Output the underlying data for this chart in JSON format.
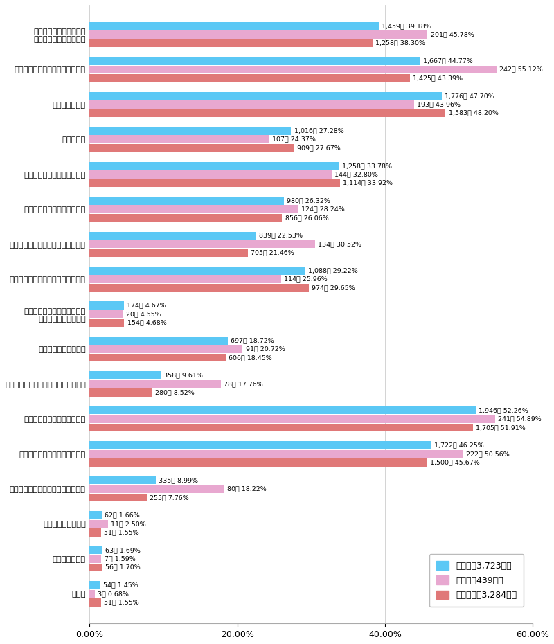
{
  "categories": [
    "既存の商品やサービスの\n量産・提供体制を整える",
    "新しい商品やサービスを投入する",
    "人員を増強する",
    "賃上げする",
    "従業員への教育機会を増やす",
    "設備を新設・増強・拡張する",
    "デジタル化へ投賃する（増額する）",
    "協力業者（パートナー）を拡充する",
    "協力業者（パートナー）への\n支払い単価を増額する",
    "新しい事業に参入する",
    "Ｍ＆Ａ（企業買収）や事業買収をする",
    "新規販売先の開拓に注力する",
    "既存販売先への拡販に注力する",
    "海外への販売を増やす（開始する）",
    "経営陣を入れ替える",
    "資本を注入する",
    "その他"
  ],
  "all_values": [
    39.18,
    44.77,
    47.7,
    27.28,
    33.78,
    26.32,
    22.53,
    29.22,
    4.67,
    18.72,
    9.61,
    52.26,
    46.25,
    8.99,
    1.66,
    1.69,
    1.45
  ],
  "large_values": [
    45.78,
    55.12,
    43.96,
    24.37,
    32.8,
    28.24,
    30.52,
    25.96,
    4.55,
    20.72,
    17.76,
    54.89,
    50.56,
    18.22,
    2.5,
    1.59,
    0.68
  ],
  "sme_values": [
    38.3,
    43.39,
    48.2,
    27.67,
    33.92,
    26.06,
    21.46,
    29.65,
    4.68,
    18.45,
    8.52,
    51.91,
    45.67,
    7.76,
    1.55,
    1.7,
    1.55
  ],
  "all_labels": [
    "1,459社 39.18%",
    "1,667社 44.77%",
    "1,776社 47.70%",
    "1,016社 27.28%",
    "1,258社 33.78%",
    "980社 26.32%",
    "839社 22.53%",
    "1,088社 29.22%",
    "174社 4.67%",
    "697社 18.72%",
    "358社 9.61%",
    "1,946社 52.26%",
    "1,722社 46.25%",
    "335社 8.99%",
    "62社 1.66%",
    "63社 1.69%",
    "54社 1.45%"
  ],
  "large_labels": [
    "201社 45.78%",
    "242社 55.12%",
    "193社 43.96%",
    "107社 24.37%",
    "144社 32.80%",
    "124社 28.24%",
    "134社 30.52%",
    "114社 25.96%",
    "20社 4.55%",
    "91社 20.72%",
    "78社 17.76%",
    "241社 54.89%",
    "222社 50.56%",
    "80社 18.22%",
    "11社 2.50%",
    "7社 1.59%",
    "3社 0.68%"
  ],
  "sme_labels": [
    "1,258社 38.30%",
    "1,425社 43.39%",
    "1,583社 48.20%",
    "909社 27.67%",
    "1,114社 33.92%",
    "856社 26.06%",
    "705社 21.46%",
    "974社 29.65%",
    "154社 4.68%",
    "606社 18.45%",
    "280社 8.52%",
    "1,705社 51.91%",
    "1,500社 45.67%",
    "255社 7.76%",
    "51社 1.55%",
    "56社 1.70%",
    "51社 1.55%"
  ],
  "color_all": "#5BC8F5",
  "color_large": "#E8A8D0",
  "color_sme": "#E07878",
  "legend_all": "（全会業3,723社）",
  "legend_large": "（大会業439社）",
  "legend_sme": "（中小会業3,284社）",
  "xlim": [
    0,
    60
  ],
  "xticks": [
    0,
    20,
    40,
    60
  ],
  "xticklabels": [
    "0.00%",
    "20.00%",
    "40.00%",
    "60.00%"
  ],
  "bar_height": 0.23,
  "bar_gap": 0.015
}
